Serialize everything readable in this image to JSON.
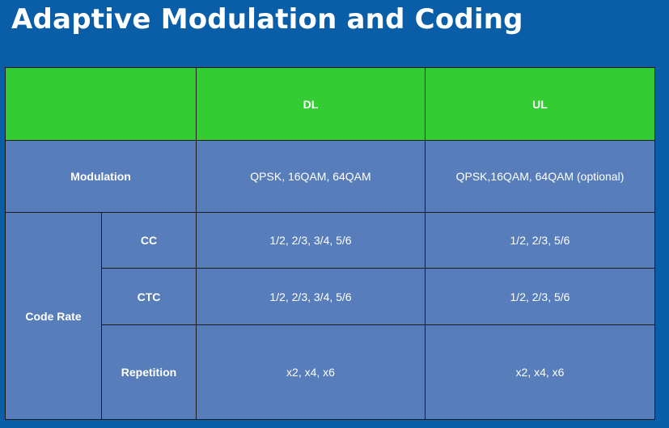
{
  "slide": {
    "title": "Adaptive Modulation and Coding"
  },
  "table": {
    "header": {
      "corner": "",
      "dl": "DL",
      "ul": "UL"
    },
    "modulation": {
      "label": "Modulation",
      "dl": "QPSK, 16QAM, 64QAM",
      "ul": "QPSK,16QAM, 64QAM (optional)"
    },
    "code_rate": {
      "label": "Code Rate",
      "rows": [
        {
          "label": "CC",
          "dl": "1/2, 2/3, 3/4, 5/6",
          "ul": "1/2, 2/3, 5/6"
        },
        {
          "label": "CTC",
          "dl": "1/2, 2/3, 3/4, 5/6",
          "ul": "1/2, 2/3, 5/6"
        },
        {
          "label": "Repetition",
          "dl": "x2, x4, x6",
          "ul": "x2, x4, x6"
        }
      ]
    }
  },
  "colors": {
    "background": "#0a5ea8",
    "header_fill": "#33cc33",
    "body_fill": "#577dba",
    "text": "#ffffff",
    "border": "#1a1a1a"
  }
}
